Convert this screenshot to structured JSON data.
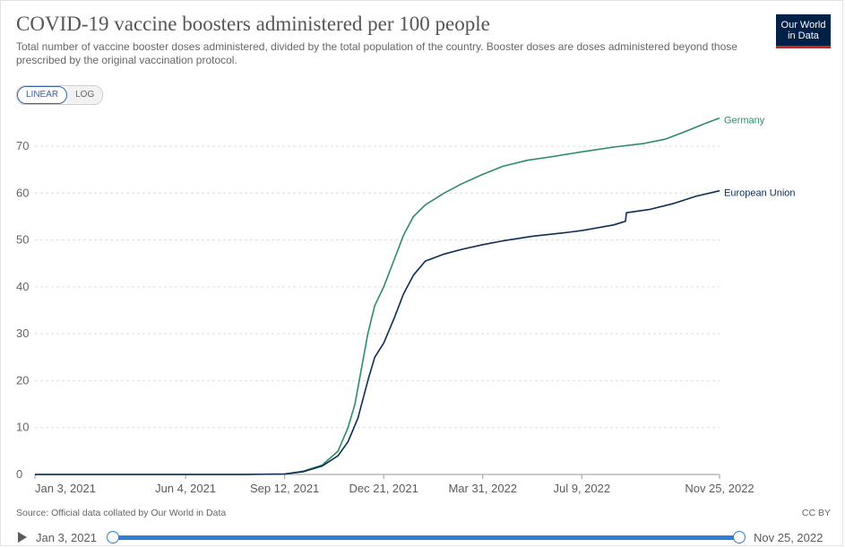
{
  "header": {
    "title": "COVID-19 vaccine boosters administered per 100 people",
    "subtitle": "Total number of vaccine booster doses administered, divided by the total population of the country. Booster doses are doses administered beyond those prescribed by the original vaccination protocol.",
    "logo_line1": "Our World",
    "logo_line2": "in Data"
  },
  "scale_toggle": {
    "linear_label": "LINEAR",
    "log_label": "LOG",
    "selected": "LINEAR"
  },
  "footer": {
    "source": "Source: Official data collated by Our World in Data",
    "license": "CC BY"
  },
  "timeline": {
    "start_label": "Jan 3, 2021",
    "end_label": "Nov 25, 2022",
    "start_position": 0,
    "end_position": 1
  },
  "colors": {
    "germany": "#2e8b6a",
    "european_union": "#0c2d57",
    "grid": "#dddddd"
  },
  "chart_data": {
    "type": "line",
    "title": "COVID-19 vaccine boosters administered per 100 people",
    "xlabel": "",
    "ylabel": "",
    "x_range": [
      "2021-01-03",
      "2022-11-25"
    ],
    "ylim": [
      0,
      75
    ],
    "y_ticks": [
      0,
      10,
      20,
      30,
      40,
      50,
      60,
      70
    ],
    "x_tick_labels": [
      {
        "date": "2021-01-03",
        "label": "Jan 3, 2021"
      },
      {
        "date": "2021-06-04",
        "label": "Jun 4, 2021"
      },
      {
        "date": "2021-09-12",
        "label": "Sep 12, 2021"
      },
      {
        "date": "2021-12-21",
        "label": "Dec 21, 2021"
      },
      {
        "date": "2022-03-31",
        "label": "Mar 31, 2022"
      },
      {
        "date": "2022-07-09",
        "label": "Jul 9, 2022"
      },
      {
        "date": "2022-11-25",
        "label": "Nov 25, 2022"
      }
    ],
    "grid": "horizontal dashed",
    "legend": "line-end labels",
    "series": [
      {
        "name": "Germany",
        "color": "#2e8b6a",
        "points": [
          [
            "2021-01-03",
            0
          ],
          [
            "2021-06-04",
            0
          ],
          [
            "2021-08-01",
            0
          ],
          [
            "2021-09-12",
            0.1
          ],
          [
            "2021-10-01",
            0.7
          ],
          [
            "2021-10-20",
            2
          ],
          [
            "2021-11-05",
            5
          ],
          [
            "2021-11-15",
            10
          ],
          [
            "2021-11-22",
            15
          ],
          [
            "2021-11-28",
            22
          ],
          [
            "2021-12-05",
            30
          ],
          [
            "2021-12-12",
            36
          ],
          [
            "2021-12-21",
            40
          ],
          [
            "2022-01-01",
            46
          ],
          [
            "2022-01-10",
            51
          ],
          [
            "2022-01-20",
            55
          ],
          [
            "2022-02-01",
            57.5
          ],
          [
            "2022-02-20",
            60
          ],
          [
            "2022-03-10",
            62
          ],
          [
            "2022-03-31",
            64
          ],
          [
            "2022-04-20",
            65.7
          ],
          [
            "2022-05-15",
            67
          ],
          [
            "2022-06-10",
            67.8
          ],
          [
            "2022-07-09",
            68.8
          ],
          [
            "2022-08-10",
            69.8
          ],
          [
            "2022-09-10",
            70.6
          ],
          [
            "2022-10-01",
            71.5
          ],
          [
            "2022-10-20",
            73
          ],
          [
            "2022-11-10",
            74.8
          ],
          [
            "2022-11-25",
            76
          ]
        ]
      },
      {
        "name": "European Union",
        "color": "#0c2d57",
        "points": [
          [
            "2021-01-03",
            0
          ],
          [
            "2021-06-04",
            0
          ],
          [
            "2021-08-01",
            0
          ],
          [
            "2021-09-12",
            0.1
          ],
          [
            "2021-10-01",
            0.6
          ],
          [
            "2021-10-20",
            1.8
          ],
          [
            "2021-11-05",
            4
          ],
          [
            "2021-11-15",
            7
          ],
          [
            "2021-11-25",
            12
          ],
          [
            "2021-12-05",
            20
          ],
          [
            "2021-12-12",
            25
          ],
          [
            "2021-12-21",
            28
          ],
          [
            "2022-01-01",
            33.5
          ],
          [
            "2022-01-10",
            38.5
          ],
          [
            "2022-01-20",
            42.5
          ],
          [
            "2022-02-01",
            45.5
          ],
          [
            "2022-02-20",
            47
          ],
          [
            "2022-03-10",
            48
          ],
          [
            "2022-03-31",
            49
          ],
          [
            "2022-04-20",
            49.8
          ],
          [
            "2022-05-20",
            50.8
          ],
          [
            "2022-06-20",
            51.5
          ],
          [
            "2022-07-09",
            52
          ],
          [
            "2022-08-10",
            53.2
          ],
          [
            "2022-08-22",
            54
          ],
          [
            "2022-08-23",
            55.8
          ],
          [
            "2022-09-15",
            56.5
          ],
          [
            "2022-10-10",
            57.8
          ],
          [
            "2022-11-01",
            59.3
          ],
          [
            "2022-11-25",
            60.5
          ]
        ]
      }
    ]
  }
}
